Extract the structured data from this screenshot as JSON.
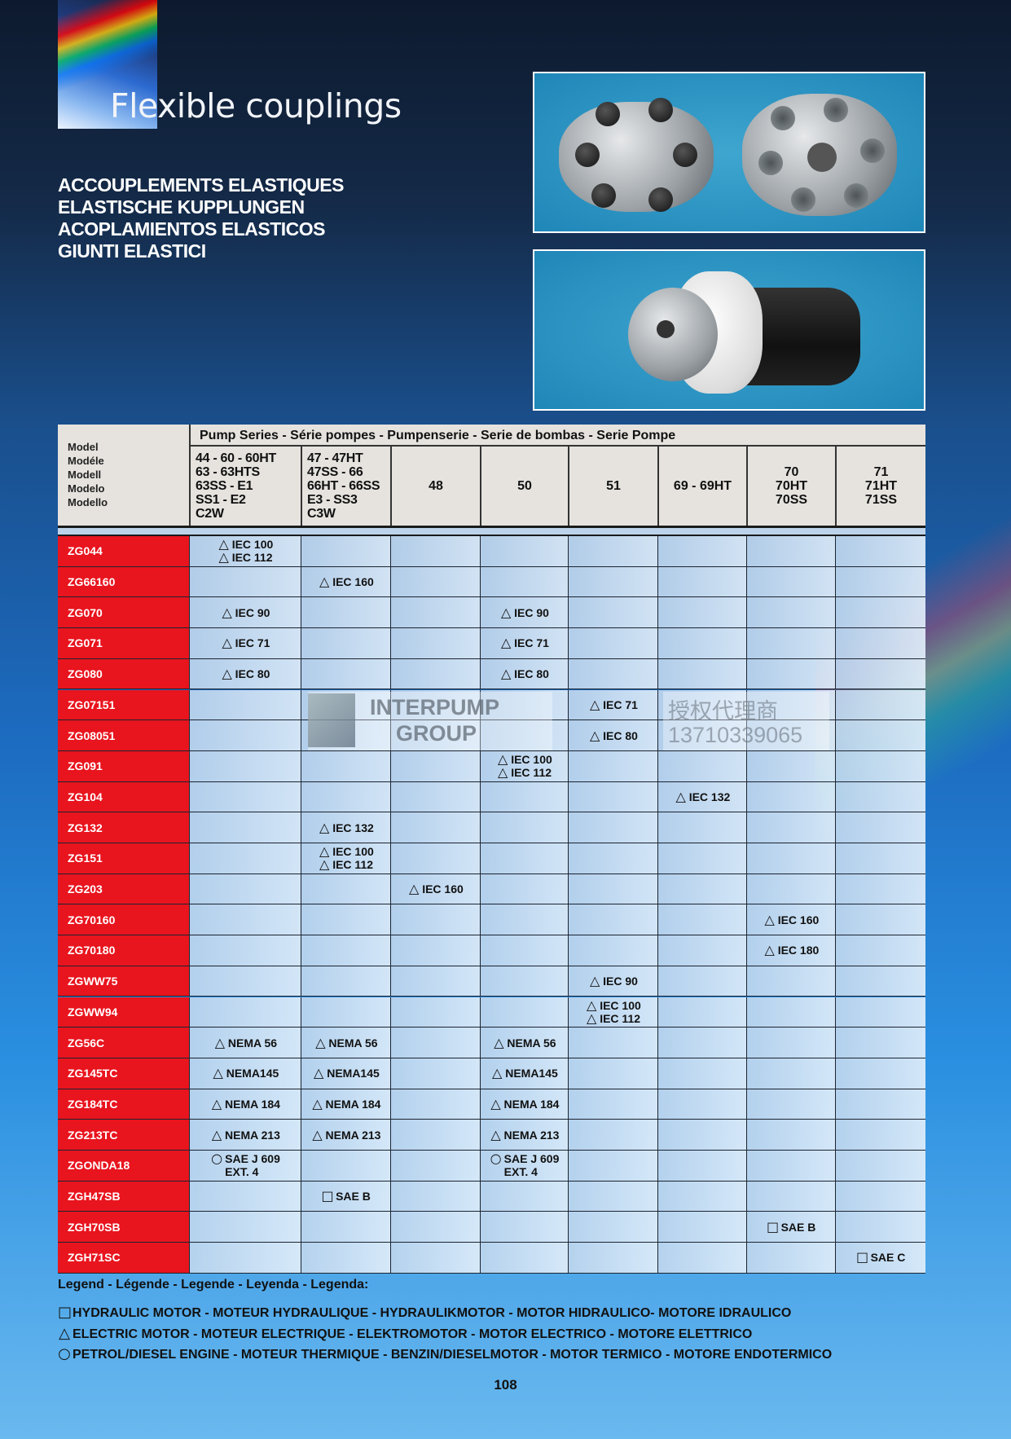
{
  "header": {
    "title": "Flexible couplings",
    "subtitles": [
      "ACCOUPLEMENTS ELASTIQUES",
      "ELASTISCHE KUPPLUNGEN",
      "ACOPLAMIENTOS ELASTICOS",
      "GIUNTI ELASTICI"
    ]
  },
  "table": {
    "model_header": [
      "Model",
      "Modéle",
      "Modell",
      "Modelo",
      "Modello"
    ],
    "series_header": "Pump Series - Série pompes - Pumpenserie - Serie de bombas - Serie Pompe",
    "columns": [
      [
        "44 - 60 - 60HT",
        "63 - 63HTS",
        "63SS - E1",
        "SS1 - E2",
        "C2W"
      ],
      [
        "47 - 47HT",
        "47SS - 66",
        "66HT - 66SS",
        "E3 - SS3",
        "C3W"
      ],
      [
        "48"
      ],
      [
        "50"
      ],
      [
        "51"
      ],
      [
        "69 - 69HT"
      ],
      [
        "70",
        "70HT",
        "70SS"
      ],
      [
        "71",
        "71HT",
        "71SS"
      ]
    ],
    "rows": [
      {
        "model": "ZG044",
        "cells": [
          {
            "sym": "triangle",
            "lines": [
              "IEC 100",
              "IEC 112"
            ]
          },
          null,
          null,
          null,
          null,
          null,
          null,
          null
        ]
      },
      {
        "model": "ZG66160",
        "cells": [
          null,
          {
            "sym": "triangle",
            "lines": [
              "IEC 160"
            ]
          },
          null,
          null,
          null,
          null,
          null,
          null
        ]
      },
      {
        "model": "ZG070",
        "cells": [
          {
            "sym": "triangle",
            "lines": [
              "IEC 90"
            ]
          },
          null,
          null,
          {
            "sym": "triangle",
            "lines": [
              "IEC 90"
            ]
          },
          null,
          null,
          null,
          null
        ]
      },
      {
        "model": "ZG071",
        "cells": [
          {
            "sym": "triangle",
            "lines": [
              "IEC 71"
            ]
          },
          null,
          null,
          {
            "sym": "triangle",
            "lines": [
              "IEC 71"
            ]
          },
          null,
          null,
          null,
          null
        ]
      },
      {
        "model": "ZG080",
        "cells": [
          {
            "sym": "triangle",
            "lines": [
              "IEC 80"
            ]
          },
          null,
          null,
          {
            "sym": "triangle",
            "lines": [
              "IEC 80"
            ]
          },
          null,
          null,
          null,
          null
        ]
      },
      {
        "model": "ZG07151",
        "cells": [
          null,
          null,
          null,
          null,
          {
            "sym": "triangle",
            "lines": [
              "IEC 71"
            ]
          },
          null,
          null,
          null
        ]
      },
      {
        "model": "ZG08051",
        "cells": [
          null,
          null,
          null,
          null,
          {
            "sym": "triangle",
            "lines": [
              "IEC 80"
            ]
          },
          null,
          null,
          null
        ]
      },
      {
        "model": "ZG091",
        "cells": [
          null,
          null,
          null,
          {
            "sym": "triangle",
            "lines": [
              "IEC 100",
              "IEC 112"
            ]
          },
          null,
          null,
          null,
          null
        ]
      },
      {
        "model": "ZG104",
        "cells": [
          null,
          null,
          null,
          null,
          null,
          {
            "sym": "triangle",
            "lines": [
              "IEC 132"
            ]
          },
          null,
          null
        ]
      },
      {
        "model": "ZG132",
        "cells": [
          null,
          {
            "sym": "triangle",
            "lines": [
              "IEC 132"
            ]
          },
          null,
          null,
          null,
          null,
          null,
          null
        ]
      },
      {
        "model": "ZG151",
        "cells": [
          null,
          {
            "sym": "triangle",
            "lines": [
              "IEC 100",
              "IEC 112"
            ]
          },
          null,
          null,
          null,
          null,
          null,
          null
        ]
      },
      {
        "model": "ZG203",
        "cells": [
          null,
          null,
          {
            "sym": "triangle",
            "lines": [
              "IEC 160"
            ]
          },
          null,
          null,
          null,
          null,
          null
        ]
      },
      {
        "model": "ZG70160",
        "cells": [
          null,
          null,
          null,
          null,
          null,
          null,
          {
            "sym": "triangle",
            "lines": [
              "IEC 160"
            ]
          },
          null
        ]
      },
      {
        "model": "ZG70180",
        "cells": [
          null,
          null,
          null,
          null,
          null,
          null,
          {
            "sym": "triangle",
            "lines": [
              "IEC 180"
            ]
          },
          null
        ]
      },
      {
        "model": "ZGWW75",
        "cells": [
          null,
          null,
          null,
          null,
          {
            "sym": "triangle",
            "lines": [
              "IEC 90"
            ]
          },
          null,
          null,
          null
        ]
      },
      {
        "model": "ZGWW94",
        "cells": [
          null,
          null,
          null,
          null,
          {
            "sym": "triangle",
            "lines": [
              "IEC 100",
              "IEC 112"
            ]
          },
          null,
          null,
          null
        ]
      },
      {
        "model": "ZG56C",
        "cells": [
          {
            "sym": "triangle",
            "lines": [
              "NEMA 56"
            ]
          },
          {
            "sym": "triangle",
            "lines": [
              "NEMA 56"
            ]
          },
          null,
          {
            "sym": "triangle",
            "lines": [
              "NEMA 56"
            ]
          },
          null,
          null,
          null,
          null
        ]
      },
      {
        "model": "ZG145TC",
        "cells": [
          {
            "sym": "triangle",
            "lines": [
              "NEMA145"
            ]
          },
          {
            "sym": "triangle",
            "lines": [
              "NEMA145"
            ]
          },
          null,
          {
            "sym": "triangle",
            "lines": [
              "NEMA145"
            ]
          },
          null,
          null,
          null,
          null
        ]
      },
      {
        "model": "ZG184TC",
        "cells": [
          {
            "sym": "triangle",
            "lines": [
              "NEMA 184"
            ]
          },
          {
            "sym": "triangle",
            "lines": [
              "NEMA 184"
            ]
          },
          null,
          {
            "sym": "triangle",
            "lines": [
              "NEMA 184"
            ]
          },
          null,
          null,
          null,
          null
        ]
      },
      {
        "model": "ZG213TC",
        "cells": [
          {
            "sym": "triangle",
            "lines": [
              "NEMA 213"
            ]
          },
          {
            "sym": "triangle",
            "lines": [
              "NEMA 213"
            ]
          },
          null,
          {
            "sym": "triangle",
            "lines": [
              "NEMA 213"
            ]
          },
          null,
          null,
          null,
          null
        ]
      },
      {
        "model": "ZGONDA18",
        "cells": [
          {
            "sym": "circle",
            "lines": [
              "SAE J 609",
              "EXT. 4"
            ]
          },
          null,
          null,
          {
            "sym": "circle",
            "lines": [
              "SAE J 609",
              "EXT. 4"
            ]
          },
          null,
          null,
          null,
          null
        ]
      },
      {
        "model": "ZGH47SB",
        "cells": [
          null,
          {
            "sym": "square",
            "lines": [
              "SAE B"
            ]
          },
          null,
          null,
          null,
          null,
          null,
          null
        ]
      },
      {
        "model": "ZGH70SB",
        "cells": [
          null,
          null,
          null,
          null,
          null,
          null,
          {
            "sym": "square",
            "lines": [
              "SAE B"
            ]
          },
          null
        ]
      },
      {
        "model": "ZGH71SC",
        "cells": [
          null,
          null,
          null,
          null,
          null,
          null,
          null,
          {
            "sym": "square",
            "lines": [
              "SAE C"
            ]
          }
        ]
      }
    ]
  },
  "symbols": {
    "triangle": "△",
    "circle": "○",
    "square": "□"
  },
  "watermark": {
    "line1": "INTERPUMP",
    "line2": "GROUP",
    "line3": "授权代理商",
    "line4": "13710339065"
  },
  "legend": {
    "title": "Legend - Légende - Legende - Leyenda - Legenda:",
    "items": [
      {
        "sym": "square",
        "text": "HYDRAULIC MOTOR - MOTEUR HYDRAULIQUE - HYDRAULIKMOTOR  - MOTOR HIDRAULICO- MOTORE IDRAULICO"
      },
      {
        "sym": "triangle",
        "text": "ELECTRIC MOTOR - MOTEUR ELECTRIQUE - ELEKTROMOTOR - MOTOR ELECTRICO - MOTORE ELETTRICO"
      },
      {
        "sym": "circle",
        "text": "PETROL/DIESEL ENGINE - MOTEUR THERMIQUE - BENZIN/DIESELMOTOR - MOTOR TERMICO - MOTORE ENDOTERMICO"
      }
    ]
  },
  "page_number": "108",
  "colors": {
    "model_cell": "#e8141e",
    "header_bg": "#e6e3df",
    "cell_bg": "#c8dcf0"
  }
}
